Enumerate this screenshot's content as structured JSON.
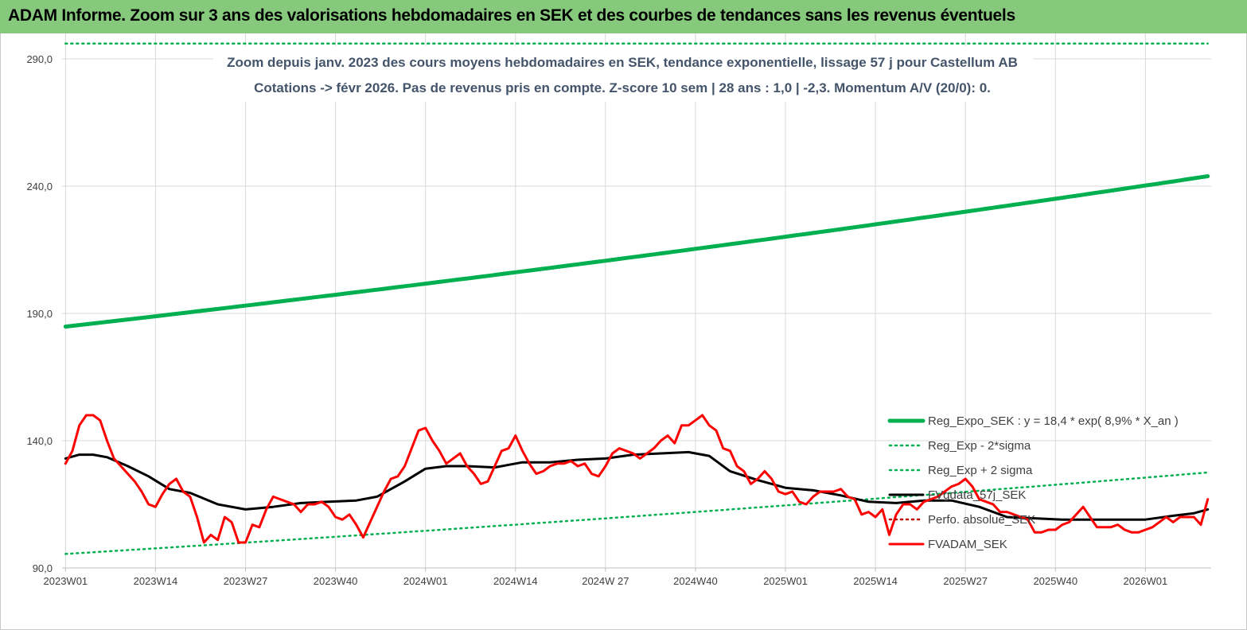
{
  "header": {
    "title": "ADAM Informe. Zoom sur 3 ans des valorisations hebdomadaires en SEK et des courbes de tendances sans les revenus éventuels"
  },
  "chart_data": {
    "type": "line",
    "subtitle_line1": "Zoom depuis janv. 2023 des cours moyens hebdomadaires en SEK, tendance exponentielle, lissage 57 j pour Castellum AB",
    "subtitle_line2": "Cotations -> févr 2026.  Pas de revenus pris en compte. Z-score 10 sem  | 28 ans : 1,0  | -2,3. Momentum A/V (20/0): 0.",
    "ylim": [
      90,
      300
    ],
    "y_ticks": [
      "90,0",
      "140,0",
      "190,0",
      "240,0",
      "290,0"
    ],
    "y_tick_values": [
      90,
      140,
      190,
      240,
      290
    ],
    "x_ticks": [
      "2023W01",
      "2023W14",
      "2023W27",
      "2023W40",
      "2024W01",
      "2024W14",
      "2024W 27",
      "2024W40",
      "2025W01",
      "2025W14",
      "2025W27",
      "2025W40",
      "2026W01"
    ],
    "x_tick_index": [
      0,
      13,
      26,
      39,
      52,
      65,
      78,
      91,
      104,
      117,
      130,
      143,
      156
    ],
    "x_count": 166,
    "grid": true,
    "legend_position": "bottom-right",
    "colors": {
      "reg_expo": "#00b050",
      "reg_band": "#00b050",
      "smooth": "#000000",
      "perfo": "#c00000",
      "fvadam": "#ff0000"
    },
    "series": [
      {
        "name": "Reg_Expo_SEK : y = 18,4 * exp( 8,9% *  X_an )",
        "style": "solid-thick",
        "x": [
          0,
          165
        ],
        "values": [
          184.8,
          243.9
        ]
      },
      {
        "name": "Reg_Exp - 2*sigma",
        "style": "dotted",
        "x": [
          0,
          165
        ],
        "values": [
          95.5,
          127.5
        ]
      },
      {
        "name": "Reg_Exp + 2 sigma",
        "style": "dotted",
        "x": [
          0,
          165
        ],
        "values": [
          296.0,
          296.0
        ]
      },
      {
        "name": "FVgdata_57j_SEK",
        "style": "solid",
        "x": [
          0,
          2,
          4,
          6,
          9,
          12,
          15,
          18,
          22,
          26,
          30,
          34,
          38,
          42,
          45,
          49,
          52,
          55,
          58,
          62,
          66,
          70,
          74,
          78,
          82,
          86,
          90,
          93,
          96,
          100,
          104,
          108,
          112,
          116,
          120,
          124,
          128,
          132,
          136,
          140,
          144,
          148,
          152,
          156,
          160,
          163,
          165
        ],
        "values": [
          133,
          134.5,
          134.5,
          133.5,
          130,
          126,
          121,
          119.5,
          115,
          113,
          114,
          115.5,
          116,
          116.5,
          118,
          124,
          129,
          130,
          130,
          129.5,
          131.5,
          131.5,
          132.5,
          133,
          134.5,
          135,
          135.5,
          134,
          128,
          124.5,
          121.5,
          120.5,
          118.5,
          116,
          115.5,
          116.5,
          116.5,
          114,
          110,
          109.5,
          109,
          109,
          109,
          109,
          110.5,
          111.5,
          113
        ]
      },
      {
        "name": "Perfo. absolue_SEK",
        "style": "dotted",
        "x": [],
        "values": []
      },
      {
        "name": "FVADAM_SEK",
        "style": "solid-thick",
        "x": [
          0,
          1,
          2,
          3,
          4,
          5,
          6,
          7,
          8,
          9,
          10,
          11,
          12,
          13,
          14,
          15,
          16,
          17,
          18,
          19,
          20,
          21,
          22,
          23,
          24,
          25,
          26,
          27,
          28,
          29,
          30,
          31,
          32,
          33,
          34,
          35,
          36,
          37,
          38,
          39,
          40,
          41,
          42,
          43,
          44,
          45,
          46,
          47,
          48,
          49,
          50,
          51,
          52,
          53,
          54,
          55,
          56,
          57,
          58,
          59,
          60,
          61,
          62,
          63,
          64,
          65,
          66,
          67,
          68,
          69,
          70,
          71,
          72,
          73,
          74,
          75,
          76,
          77,
          78,
          79,
          80,
          81,
          82,
          83,
          84,
          85,
          86,
          87,
          88,
          89,
          90,
          91,
          92,
          93,
          94,
          95,
          96,
          97,
          98,
          99,
          100,
          101,
          102,
          103,
          104,
          105,
          106,
          107,
          108,
          109,
          110,
          111,
          112,
          113,
          114,
          115,
          116,
          117,
          118,
          119,
          120,
          121,
          122,
          123,
          124,
          125,
          126,
          127,
          128,
          129,
          130,
          131,
          132,
          133,
          134,
          135,
          136,
          137,
          138,
          139,
          140,
          141,
          142,
          143,
          144,
          145,
          146,
          147,
          148,
          149,
          150,
          151,
          152,
          153,
          154,
          155,
          156,
          157,
          158,
          159,
          160,
          161,
          162,
          163,
          164,
          165
        ],
        "values": [
          131,
          136,
          146,
          150,
          150,
          148,
          140,
          133,
          130,
          127,
          124,
          120,
          115,
          114,
          119,
          123,
          125,
          120,
          118,
          110,
          100,
          103,
          101,
          110,
          108,
          100,
          100,
          107,
          106,
          113,
          118,
          117,
          116,
          115,
          112,
          115,
          115,
          116,
          114,
          110,
          109,
          111,
          107,
          102,
          108,
          114,
          120,
          125,
          126,
          130,
          137,
          144,
          145,
          140,
          136,
          131,
          133,
          135,
          130,
          127,
          123,
          124,
          130,
          136,
          137,
          142,
          136,
          131,
          127,
          128,
          130,
          131,
          131,
          132,
          130,
          131,
          127,
          126,
          130,
          135,
          137,
          136,
          135,
          133,
          135,
          137,
          140,
          142,
          139,
          146,
          146,
          148,
          150,
          146,
          144,
          137,
          136,
          130,
          128,
          123,
          125,
          128,
          125,
          120,
          119,
          120,
          116,
          115,
          118,
          120,
          120,
          120,
          121,
          118,
          117,
          111,
          112,
          110,
          113,
          103,
          111,
          115,
          115,
          113,
          116,
          117,
          118,
          120,
          122,
          123,
          125,
          122,
          117,
          116,
          115,
          112,
          112,
          111,
          110,
          109,
          104,
          104,
          105,
          105,
          107,
          108,
          111,
          114,
          110,
          106,
          106,
          106,
          107,
          105,
          104,
          104,
          105,
          106,
          108,
          110,
          108,
          110,
          110,
          110,
          107,
          117
        ]
      }
    ]
  }
}
